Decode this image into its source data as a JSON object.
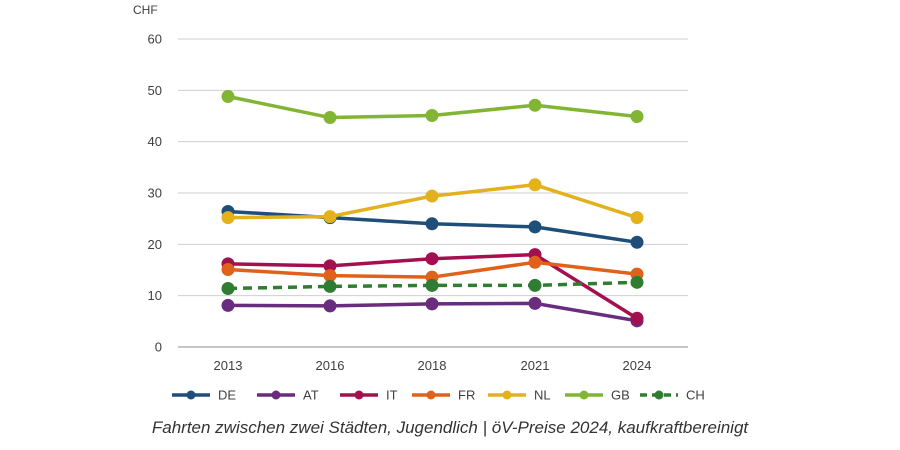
{
  "chart_data": {
    "type": "line",
    "x": [
      "2013",
      "2016",
      "2018",
      "2021",
      "2024"
    ],
    "ylabel": "CHF",
    "ylim": [
      0,
      60
    ],
    "yticks": [
      0,
      10,
      20,
      30,
      40,
      50,
      60
    ],
    "grid": true,
    "legend_position": "bottom",
    "series": [
      {
        "name": "DE",
        "color": "#1f4e79",
        "dashed": false,
        "values": [
          26.4,
          25.2,
          24.0,
          23.4,
          20.4
        ]
      },
      {
        "name": "AT",
        "color": "#6a2c7f",
        "dashed": false,
        "values": [
          8.1,
          8.0,
          8.4,
          8.5,
          5.1
        ]
      },
      {
        "name": "IT",
        "color": "#a3104f",
        "dashed": false,
        "values": [
          16.2,
          15.8,
          17.2,
          18.0,
          5.6
        ]
      },
      {
        "name": "FR",
        "color": "#e0611a",
        "dashed": false,
        "values": [
          15.1,
          13.9,
          13.6,
          16.5,
          14.2
        ]
      },
      {
        "name": "NL",
        "color": "#e3b11c",
        "dashed": false,
        "values": [
          25.2,
          25.4,
          29.4,
          31.6,
          25.2
        ]
      },
      {
        "name": "GB",
        "color": "#82b534",
        "dashed": false,
        "values": [
          48.8,
          44.7,
          45.1,
          47.1,
          44.9
        ]
      },
      {
        "name": "CH",
        "color": "#2e7d32",
        "dashed": true,
        "values": [
          11.4,
          11.8,
          12.0,
          12.0,
          12.6
        ]
      }
    ]
  },
  "caption": "Fahrten zwischen zwei Städten, Jugendlich | öV-Preise 2024, kaufkraftbereinigt"
}
